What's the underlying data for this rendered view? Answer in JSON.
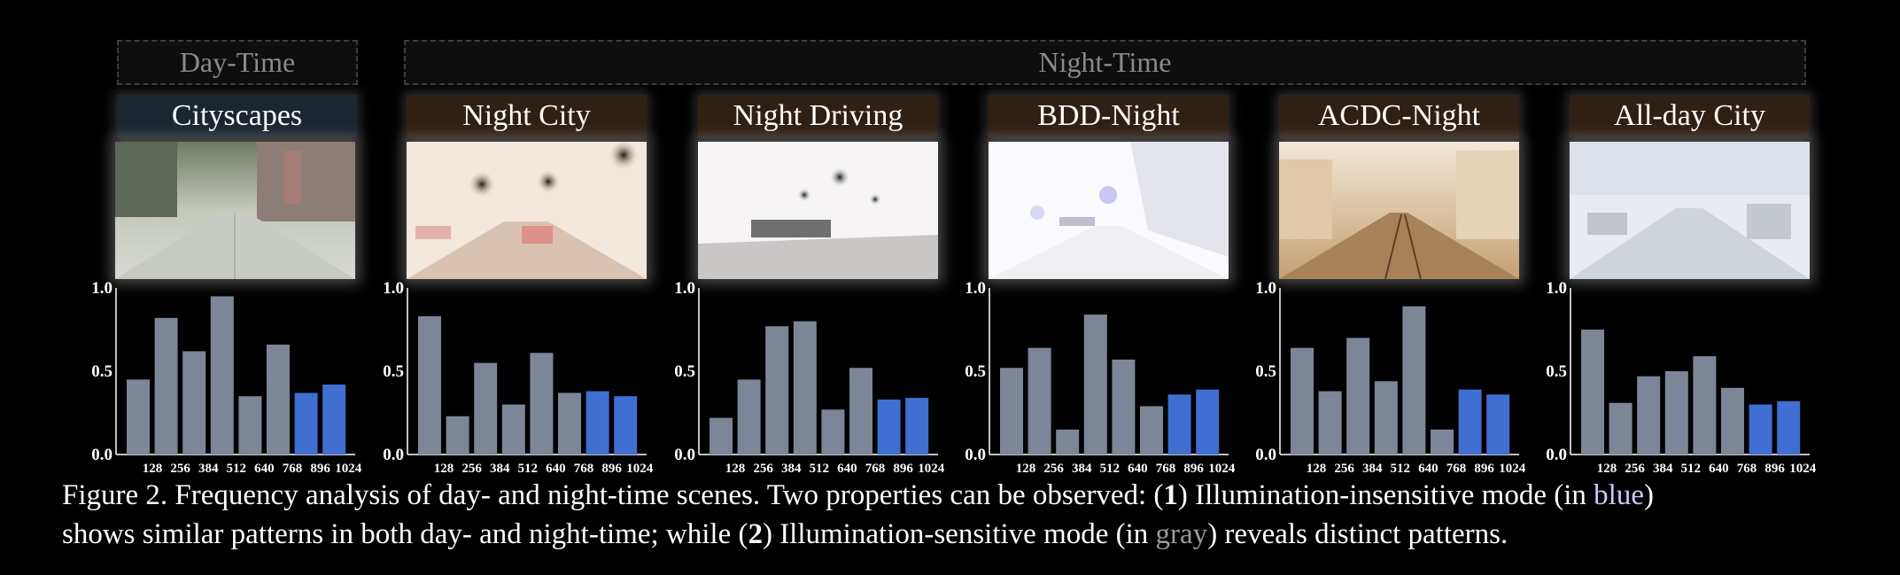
{
  "groups": {
    "day": "Day-Time",
    "night": "Night-Time"
  },
  "datasets": [
    {
      "name": "Cityscapes"
    },
    {
      "name": "Night City"
    },
    {
      "name": "Night Driving"
    },
    {
      "name": "BDD-Night"
    },
    {
      "name": "ACDC-Night"
    },
    {
      "name": "All-day City"
    }
  ],
  "colors": {
    "gray_bar": "#7d8696",
    "blue_bar": "#3f6fd1",
    "axis": "#ffffff"
  },
  "chart_data": [
    {
      "type": "bar",
      "categories": [
        "128",
        "256",
        "384",
        "512",
        "640",
        "768",
        "896",
        "1024"
      ],
      "values": [
        0.45,
        0.82,
        0.62,
        0.95,
        0.35,
        0.66,
        0.37,
        0.42
      ],
      "bar_colors": [
        "gray",
        "gray",
        "gray",
        "gray",
        "gray",
        "gray",
        "blue",
        "blue"
      ],
      "ylim": [
        0,
        1.0
      ],
      "yticks": [
        "0.0",
        "0.5",
        "1.0"
      ]
    },
    {
      "type": "bar",
      "categories": [
        "128",
        "256",
        "384",
        "512",
        "640",
        "768",
        "896",
        "1024"
      ],
      "values": [
        0.83,
        0.23,
        0.55,
        0.3,
        0.61,
        0.37,
        0.38,
        0.35
      ],
      "bar_colors": [
        "gray",
        "gray",
        "gray",
        "gray",
        "gray",
        "gray",
        "blue",
        "blue"
      ],
      "ylim": [
        0,
        1.0
      ],
      "yticks": [
        "0.0",
        "0.5",
        "1.0"
      ]
    },
    {
      "type": "bar",
      "categories": [
        "128",
        "256",
        "384",
        "512",
        "640",
        "768",
        "896",
        "1024"
      ],
      "values": [
        0.22,
        0.45,
        0.77,
        0.8,
        0.27,
        0.52,
        0.33,
        0.34
      ],
      "bar_colors": [
        "gray",
        "gray",
        "gray",
        "gray",
        "gray",
        "gray",
        "blue",
        "blue"
      ],
      "ylim": [
        0,
        1.0
      ],
      "yticks": [
        "0.0",
        "0.5",
        "1.0"
      ]
    },
    {
      "type": "bar",
      "categories": [
        "128",
        "256",
        "384",
        "512",
        "640",
        "768",
        "896",
        "1024"
      ],
      "values": [
        0.52,
        0.64,
        0.15,
        0.84,
        0.57,
        0.29,
        0.36,
        0.39
      ],
      "bar_colors": [
        "gray",
        "gray",
        "gray",
        "gray",
        "gray",
        "gray",
        "blue",
        "blue"
      ],
      "ylim": [
        0,
        1.0
      ],
      "yticks": [
        "0.0",
        "0.5",
        "1.0"
      ]
    },
    {
      "type": "bar",
      "categories": [
        "128",
        "256",
        "384",
        "512",
        "640",
        "768",
        "896",
        "1024"
      ],
      "values": [
        0.64,
        0.38,
        0.7,
        0.44,
        0.89,
        0.15,
        0.39,
        0.36
      ],
      "bar_colors": [
        "gray",
        "gray",
        "gray",
        "gray",
        "gray",
        "gray",
        "blue",
        "blue"
      ],
      "ylim": [
        0,
        1.0
      ],
      "yticks": [
        "0.0",
        "0.5",
        "1.0"
      ]
    },
    {
      "type": "bar",
      "categories": [
        "128",
        "256",
        "384",
        "512",
        "640",
        "768",
        "896",
        "1024"
      ],
      "values": [
        0.75,
        0.31,
        0.47,
        0.5,
        0.59,
        0.4,
        0.3,
        0.32
      ],
      "bar_colors": [
        "gray",
        "gray",
        "gray",
        "gray",
        "gray",
        "gray",
        "blue",
        "blue"
      ],
      "ylim": [
        0,
        1.0
      ],
      "yticks": [
        "0.0",
        "0.5",
        "1.0"
      ]
    }
  ],
  "caption": {
    "p1": "Figure 2. Frequency analysis of day- and night-time scenes. Two properties can be observed: (",
    "n1": "1",
    "p2": ") Illumination-insensitive mode (in ",
    "blue_word": "blue",
    "p3": ")",
    "p4": "shows similar patterns in both day- and night-time; while (",
    "n2": "2",
    "p5": ") Illumination-sensitive mode (in ",
    "gray_word": "gray",
    "p6": ") reveals distinct patterns."
  }
}
